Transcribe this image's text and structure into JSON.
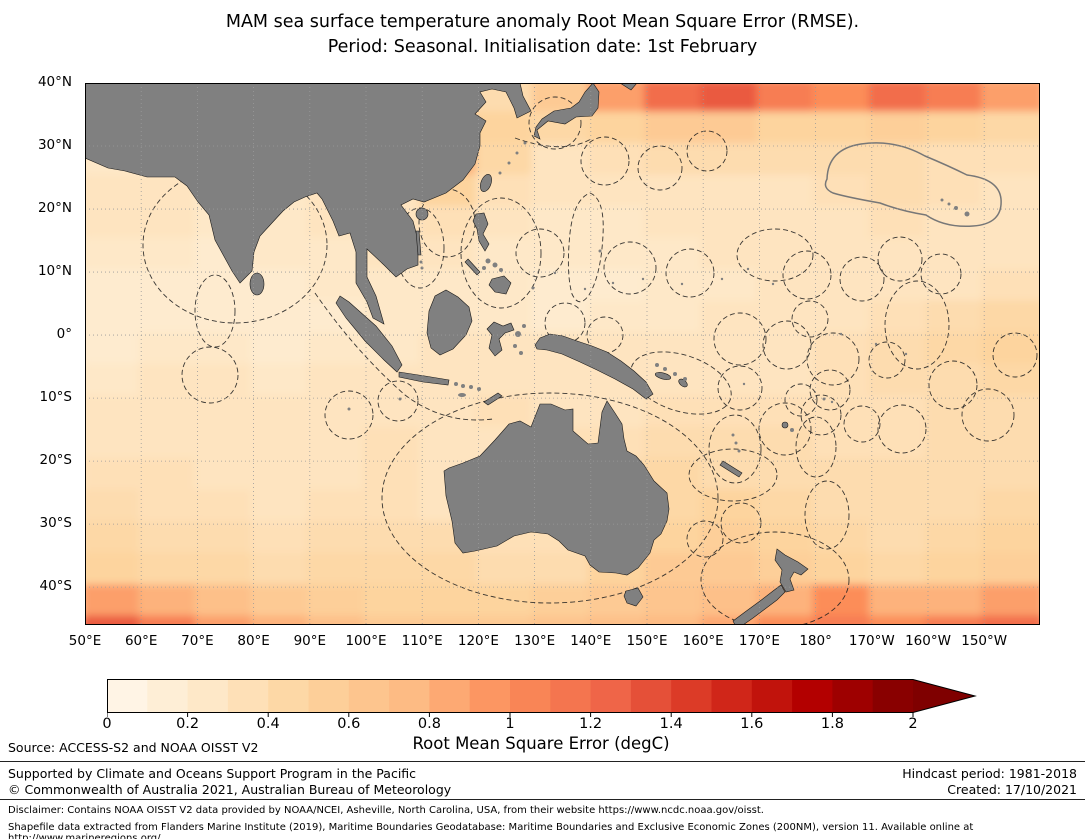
{
  "figure": {
    "title_line1": "MAM sea surface temperature anomaly Root Mean Square Error (RMSE).",
    "title_line2": "Period: Seasonal. Initialisation date: 1st February"
  },
  "axes": {
    "x_tick_labels": [
      "50°E",
      "60°E",
      "70°E",
      "80°E",
      "90°E",
      "100°E",
      "110°E",
      "120°E",
      "130°E",
      "140°E",
      "150°E",
      "160°E",
      "170°E",
      "180°",
      "170°W",
      "160°W",
      "150°W"
    ],
    "x_tick_degrees_east": [
      50,
      60,
      70,
      80,
      90,
      100,
      110,
      120,
      130,
      140,
      150,
      160,
      170,
      180,
      190,
      200,
      210
    ],
    "y_tick_labels": [
      "40°N",
      "30°N",
      "20°N",
      "10°N",
      "0°",
      "10°S",
      "20°S",
      "30°S",
      "40°S"
    ],
    "y_tick_degrees_north": [
      40,
      30,
      20,
      10,
      0,
      -10,
      -20,
      -30,
      -40
    ]
  },
  "colorbar": {
    "label": "Root Mean Square Error (degC)",
    "min": 0,
    "max": 2,
    "extend": "max",
    "tick_values": [
      0,
      0.2,
      0.4,
      0.6,
      0.8,
      1,
      1.2,
      1.4,
      1.6,
      1.8,
      2
    ],
    "tick_labels": [
      "0",
      "0.2",
      "0.4",
      "0.6",
      "0.8",
      "1",
      "1.2",
      "1.4",
      "1.6",
      "1.8",
      "2"
    ]
  },
  "colors": {
    "land": "#808080",
    "colormap_stops": [
      "#fff7ec",
      "#fee8c8",
      "#fdd49e",
      "#fdbb84",
      "#fc8d59",
      "#ef6548",
      "#d7301f",
      "#b30000",
      "#7f0000"
    ]
  },
  "source_note": "Source: ACCESS-S2 and NOAA OISST V2",
  "footer": {
    "left_line1": "Supported by Climate and Oceans Support Program in the Pacific",
    "left_line2": "© Commonwealth of Australia 2021, Australian Bureau of Meteorology",
    "right_line1": "Hindcast period: 1981-2018",
    "right_line2": "Created: 17/10/2021"
  },
  "disclaimer": {
    "line1": "Disclaimer: Contains NOAA OISST V2 data provided by NOAA/NCEI, Asheville, North Carolina, USA, from their website https://www.ncdc.noaa.gov/oisst.",
    "line2": "Shapefile data extracted from Flanders Marine Institute (2019), Maritime Boundaries Geodatabase: Maritime Boundaries and Exclusive Economic Zones (200NM), version 11. Available online at http://www.marineregions.org/."
  },
  "chart_data": {
    "type": "heatmap",
    "title": "MAM sea surface temperature anomaly Root Mean Square Error (RMSE). Period: Seasonal. Initialisation date: 1st February",
    "xlabel": "",
    "ylabel": "",
    "value_units": "degC",
    "value_range": [
      0,
      2
    ],
    "region": {
      "lon_min_deg_east": 50,
      "lon_max_deg_east": 220,
      "lat_min": -46,
      "lat_max": 40
    },
    "grid": true,
    "legend_position": "bottom colorbar, extended max arrow",
    "grid_definition": {
      "lon_start": 50,
      "lon_step": 10,
      "lat_start": 40,
      "lat_step": -5,
      "order": "rows north to south, columns west to east",
      "note": "approximate RMSE (degC) read from the map shading"
    },
    "values": [
      [
        0.2,
        0.2,
        0.2,
        0.2,
        0.2,
        0.25,
        0.3,
        0.4,
        0.6,
        0.9,
        1.2,
        1.3,
        1.1,
        1.0,
        1.2,
        1.1,
        0.9
      ],
      [
        0.2,
        0.2,
        0.2,
        0.2,
        0.2,
        0.3,
        0.7,
        0.5,
        0.45,
        0.5,
        0.6,
        0.6,
        0.5,
        0.5,
        0.55,
        0.5,
        0.45
      ],
      [
        0.25,
        0.25,
        0.2,
        0.2,
        0.25,
        0.3,
        0.8,
        0.45,
        0.3,
        0.35,
        0.4,
        0.4,
        0.4,
        0.4,
        0.4,
        0.35,
        0.35
      ],
      [
        0.3,
        0.3,
        0.25,
        0.25,
        0.3,
        0.3,
        0.5,
        0.35,
        0.3,
        0.3,
        0.3,
        0.3,
        0.3,
        0.35,
        0.4,
        0.35,
        0.3
      ],
      [
        0.3,
        0.3,
        0.25,
        0.25,
        0.3,
        0.3,
        0.35,
        0.3,
        0.25,
        0.25,
        0.3,
        0.3,
        0.3,
        0.3,
        0.35,
        0.3,
        0.3
      ],
      [
        0.25,
        0.25,
        0.2,
        0.25,
        0.25,
        0.3,
        0.3,
        0.25,
        0.25,
        0.25,
        0.25,
        0.3,
        0.3,
        0.3,
        0.3,
        0.3,
        0.3
      ],
      [
        0.2,
        0.2,
        0.2,
        0.2,
        0.25,
        0.25,
        0.25,
        0.25,
        0.2,
        0.2,
        0.25,
        0.25,
        0.3,
        0.3,
        0.3,
        0.3,
        0.35
      ],
      [
        0.2,
        0.2,
        0.2,
        0.2,
        0.2,
        0.25,
        0.25,
        0.25,
        0.2,
        0.25,
        0.25,
        0.3,
        0.3,
        0.3,
        0.35,
        0.4,
        0.45
      ],
      [
        0.2,
        0.25,
        0.25,
        0.2,
        0.25,
        0.25,
        0.3,
        0.3,
        0.3,
        0.3,
        0.3,
        0.3,
        0.3,
        0.35,
        0.4,
        0.45,
        0.5
      ],
      [
        0.25,
        0.3,
        0.3,
        0.25,
        0.3,
        0.3,
        0.3,
        0.3,
        0.3,
        0.3,
        0.3,
        0.3,
        0.3,
        0.35,
        0.4,
        0.4,
        0.45
      ],
      [
        0.3,
        0.3,
        0.3,
        0.3,
        0.3,
        0.3,
        0.3,
        0.35,
        0.3,
        0.3,
        0.35,
        0.35,
        0.35,
        0.35,
        0.35,
        0.4,
        0.4
      ],
      [
        0.3,
        0.3,
        0.3,
        0.3,
        0.3,
        0.35,
        0.3,
        0.3,
        0.35,
        0.35,
        0.4,
        0.4,
        0.4,
        0.35,
        0.35,
        0.4,
        0.4
      ],
      [
        0.35,
        0.35,
        0.3,
        0.3,
        0.3,
        0.35,
        0.3,
        0.3,
        0.3,
        0.4,
        0.45,
        0.4,
        0.4,
        0.4,
        0.4,
        0.4,
        0.4
      ],
      [
        0.4,
        0.35,
        0.35,
        0.3,
        0.35,
        0.35,
        0.3,
        0.3,
        0.3,
        0.35,
        0.45,
        0.5,
        0.45,
        0.4,
        0.4,
        0.4,
        0.45
      ],
      [
        0.45,
        0.4,
        0.4,
        0.35,
        0.4,
        0.4,
        0.4,
        0.35,
        0.35,
        0.4,
        0.5,
        0.55,
        0.5,
        0.45,
        0.4,
        0.45,
        0.5
      ],
      [
        0.5,
        0.45,
        0.45,
        0.4,
        0.45,
        0.45,
        0.45,
        0.4,
        0.4,
        0.5,
        0.6,
        0.6,
        0.55,
        0.5,
        0.45,
        0.5,
        0.55
      ],
      [
        0.9,
        0.8,
        0.7,
        0.6,
        0.55,
        0.5,
        0.5,
        0.5,
        0.55,
        0.6,
        0.65,
        0.7,
        0.8,
        1.0,
        0.8,
        0.8,
        0.9
      ],
      [
        1.3,
        1.1,
        0.9,
        0.8,
        0.7,
        0.6,
        0.6,
        0.6,
        0.65,
        0.7,
        0.75,
        0.85,
        1.0,
        1.1,
        1.0,
        1.1,
        1.2
      ]
    ],
    "colorbar_ticks": [
      0,
      0.2,
      0.4,
      0.6,
      0.8,
      1,
      1.2,
      1.4,
      1.6,
      1.8,
      2
    ]
  }
}
